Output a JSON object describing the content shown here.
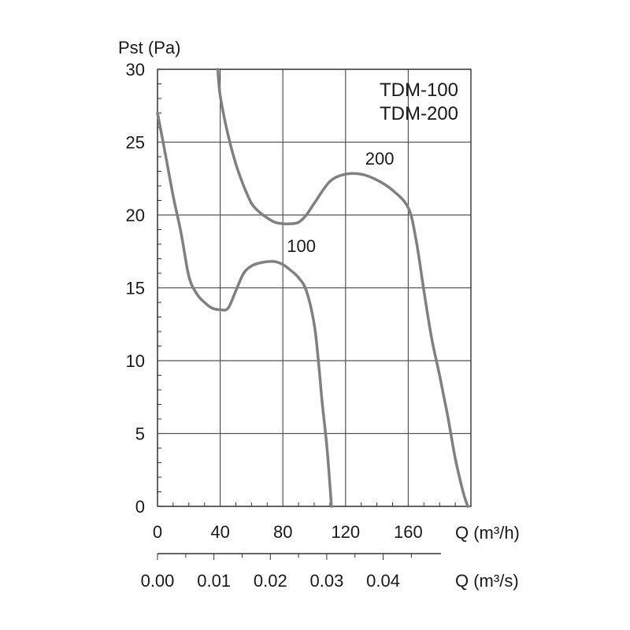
{
  "chart_data": {
    "type": "line",
    "y_axis": {
      "label": "Pst (Pa)",
      "ticks": [
        "0",
        "5",
        "10",
        "15",
        "20",
        "25",
        "30"
      ],
      "ylim": [
        0,
        30
      ]
    },
    "x_axis": {
      "label": "Q (m³/h)",
      "ticks": [
        "0",
        "40",
        "80",
        "120",
        "160"
      ],
      "tick_values": [
        0,
        40,
        80,
        120,
        160
      ],
      "xlim": [
        0,
        200
      ]
    },
    "x_axis_secondary": {
      "label": "Q (m³/s)",
      "ticks": [
        "0.00",
        "0.01",
        "0.02",
        "0.03",
        "0.04"
      ],
      "tick_values": [
        0,
        0.01,
        0.02,
        0.03,
        0.04
      ]
    },
    "legend": [
      "TDM-100",
      "TDM-200"
    ],
    "legend_position": "top-right",
    "grid": true,
    "series": [
      {
        "name": "100",
        "x": [
          0,
          5,
          10,
          15,
          20,
          25,
          30,
          35,
          40,
          45,
          50,
          55,
          60,
          65,
          70,
          75,
          80,
          85,
          90,
          95,
          100,
          103,
          105,
          108,
          110,
          111
        ],
        "y": [
          27,
          24.2,
          21.3,
          18.8,
          15.8,
          14.6,
          14.0,
          13.6,
          13.5,
          13.6,
          14.8,
          16.0,
          16.5,
          16.7,
          16.8,
          16.8,
          16.6,
          16.2,
          15.7,
          14.8,
          12.5,
          9.6,
          7.2,
          4.2,
          1.5,
          0
        ],
        "label": "100"
      },
      {
        "name": "200",
        "x": [
          38.5,
          40,
          45,
          50,
          55,
          60,
          65,
          70,
          75,
          80,
          85,
          90,
          95,
          100,
          110,
          120,
          130,
          140,
          150,
          160,
          165,
          170,
          175,
          180,
          185,
          190,
          195,
          198
        ],
        "y": [
          30,
          28.2,
          25.5,
          23.5,
          22.0,
          20.8,
          20.2,
          19.8,
          19.5,
          19.4,
          19.4,
          19.5,
          20.0,
          20.8,
          22.3,
          22.8,
          22.8,
          22.4,
          21.7,
          20.5,
          18.3,
          14.8,
          11.5,
          9.0,
          6.3,
          3.3,
          1.0,
          0
        ],
        "label": "200"
      }
    ]
  }
}
